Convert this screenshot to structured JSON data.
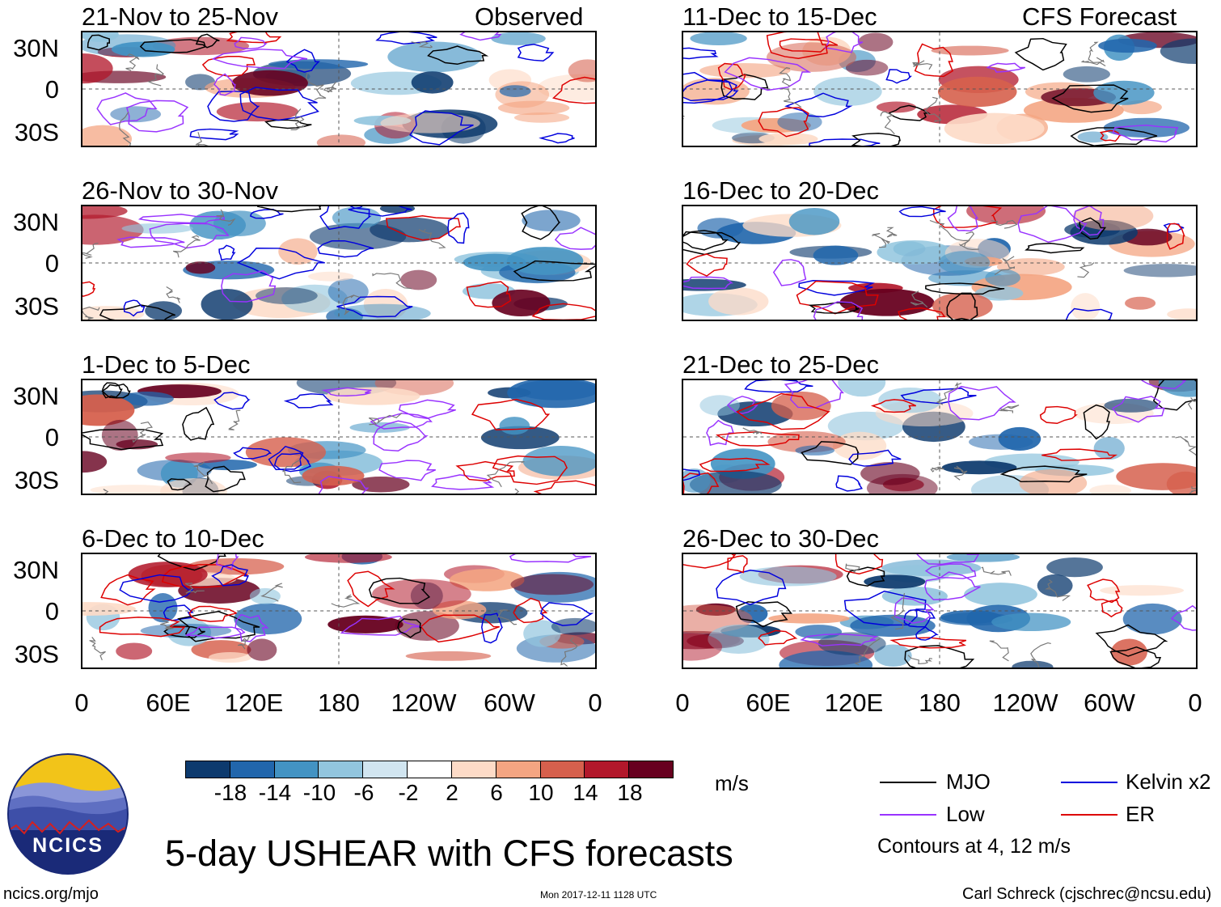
{
  "panels": {
    "observed_label": "Observed",
    "forecast_label": "CFS Forecast",
    "left": [
      {
        "title": "21-Nov to 25-Nov"
      },
      {
        "title": "26-Nov to 30-Nov"
      },
      {
        "title": "1-Dec to 5-Dec"
      },
      {
        "title": "6-Dec to 10-Dec"
      }
    ],
    "right": [
      {
        "title": "11-Dec to 15-Dec"
      },
      {
        "title": "16-Dec to 20-Dec"
      },
      {
        "title": "21-Dec to 25-Dec"
      },
      {
        "title": "26-Dec to 30-Dec"
      }
    ]
  },
  "axes": {
    "y_ticks": [
      "30N",
      "0",
      "30S"
    ],
    "x_ticks": [
      "0",
      "60E",
      "120E",
      "180",
      "120W",
      "60W",
      "0"
    ]
  },
  "colorbar": {
    "unit": "m/s",
    "labels": [
      "-18",
      "-14",
      "-10",
      "-6",
      "-2",
      "2",
      "6",
      "10",
      "14",
      "18"
    ],
    "colors": [
      "#0d3a6e",
      "#2166ac",
      "#4393c3",
      "#92c5de",
      "#d1e5f0",
      "#ffffff",
      "#fddbc7",
      "#f4a582",
      "#d6604d",
      "#b2182b",
      "#67001f"
    ]
  },
  "legend": {
    "items": [
      {
        "label": "MJO",
        "color": "#000000"
      },
      {
        "label": "Kelvin x2",
        "color": "#0000dd"
      },
      {
        "label": "Low",
        "color": "#9933ff"
      },
      {
        "label": "ER",
        "color": "#dd0000"
      }
    ],
    "note": "Contours at 4, 12 m/s"
  },
  "title": "5-day USHEAR with CFS forecasts",
  "logo_text": "NCICS",
  "footer": {
    "url": "ncics.org/mjo",
    "timestamp": "Mon 2017-12-11 1128 UTC",
    "credit": "Carl Schreck (cjschrec@ncsu.edu)"
  }
}
